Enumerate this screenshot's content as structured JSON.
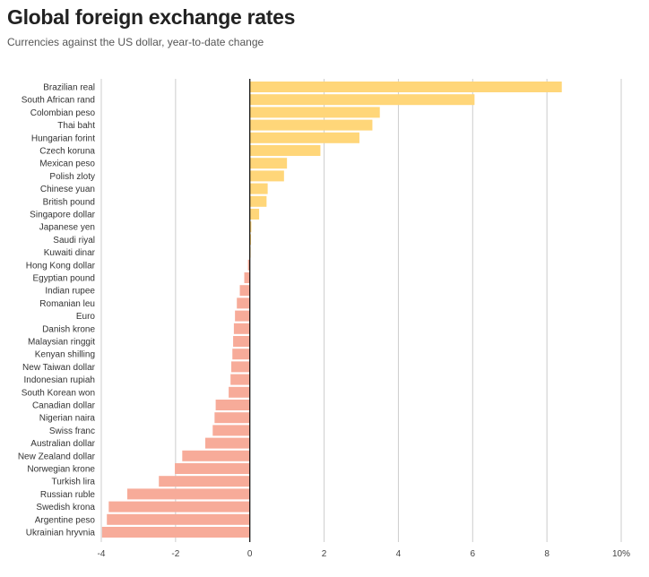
{
  "chart_data": {
    "type": "bar",
    "orientation": "horizontal",
    "title": "Global foreign exchange rates",
    "subtitle": "Currencies against the US dollar, year-to-date change",
    "xlabel": "",
    "ylabel": "",
    "xlim": [
      -4,
      10
    ],
    "x_ticks": [
      -4,
      -2,
      0,
      2,
      4,
      6,
      8,
      10
    ],
    "x_tick_labels": [
      "-4",
      "-2",
      "0",
      "2",
      "4",
      "6",
      "8",
      "10%"
    ],
    "grid": true,
    "colors": {
      "positive": "#ffd679",
      "negative": "#f7ab99",
      "grid": "#cccccc",
      "zero_line": "#000000"
    },
    "categories": [
      "Brazilian real",
      "South African rand",
      "Colombian peso",
      "Thai baht",
      "Hungarian forint",
      "Czech koruna",
      "Mexican peso",
      "Polish zloty",
      "Chinese yuan",
      "British pound",
      "Singapore dollar",
      "Japanese yen",
      "Saudi riyal",
      "Kuwaiti dinar",
      "Hong Kong dollar",
      "Egyptian pound",
      "Indian rupee",
      "Romanian leu",
      "Euro",
      "Danish krone",
      "Malaysian ringgit",
      "Kenyan shilling",
      "New Taiwan dollar",
      "Indonesian rupiah",
      "South Korean won",
      "Canadian dollar",
      "Nigerian naira",
      "Swiss franc",
      "Australian dollar",
      "New Zealand dollar",
      "Norwegian krone",
      "Turkish lira",
      "Russian ruble",
      "Swedish krona",
      "Argentine peso",
      "Ukrainian hryvnia"
    ],
    "values": [
      8.4,
      6.05,
      3.5,
      3.3,
      2.95,
      1.9,
      1.0,
      0.92,
      0.48,
      0.45,
      0.25,
      0.04,
      0.03,
      0.02,
      -0.05,
      -0.15,
      -0.27,
      -0.35,
      -0.4,
      -0.43,
      -0.45,
      -0.47,
      -0.5,
      -0.52,
      -0.57,
      -0.92,
      -0.95,
      -1.0,
      -1.2,
      -1.82,
      -2.02,
      -2.45,
      -3.3,
      -3.8,
      -3.85,
      -3.98
    ]
  }
}
